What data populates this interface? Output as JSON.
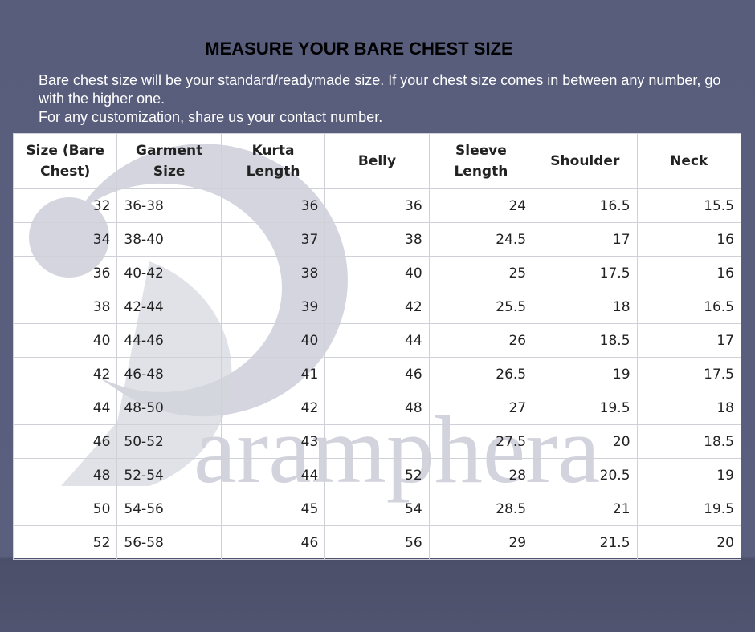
{
  "header": {
    "title": "MEASURE YOUR BARE CHEST SIZE",
    "lines": [
      "Bare chest size will be your standard/readymade size. If your chest size comes in between any number, go with the higher one.",
      "For any customization, share us your contact number."
    ]
  },
  "watermark": "aramphera",
  "table": {
    "columns": [
      "Size (Bare Chest)",
      "Garment Size",
      "Kurta Length",
      "Belly",
      "Sleeve Length",
      "Shoulder",
      "Neck"
    ],
    "rows": [
      [
        32,
        "36-38",
        36,
        36,
        24,
        16.5,
        15.5
      ],
      [
        34,
        "38-40",
        37,
        38,
        24.5,
        17,
        16
      ],
      [
        36,
        "40-42",
        38,
        40,
        25,
        17.5,
        16
      ],
      [
        38,
        "42-44",
        39,
        42,
        25.5,
        18,
        16.5
      ],
      [
        40,
        "44-46",
        40,
        44,
        26,
        18.5,
        17
      ],
      [
        42,
        "46-48",
        41,
        46,
        26.5,
        19,
        17.5
      ],
      [
        44,
        "48-50",
        42,
        48,
        27,
        19.5,
        18
      ],
      [
        46,
        "50-52",
        43,
        null,
        27.5,
        20,
        18.5
      ],
      [
        48,
        "52-54",
        44,
        52,
        28,
        20.5,
        19
      ],
      [
        50,
        "54-56",
        45,
        54,
        28.5,
        21,
        19.5
      ],
      [
        52,
        "56-58",
        46,
        56,
        29,
        21.5,
        20
      ]
    ]
  }
}
